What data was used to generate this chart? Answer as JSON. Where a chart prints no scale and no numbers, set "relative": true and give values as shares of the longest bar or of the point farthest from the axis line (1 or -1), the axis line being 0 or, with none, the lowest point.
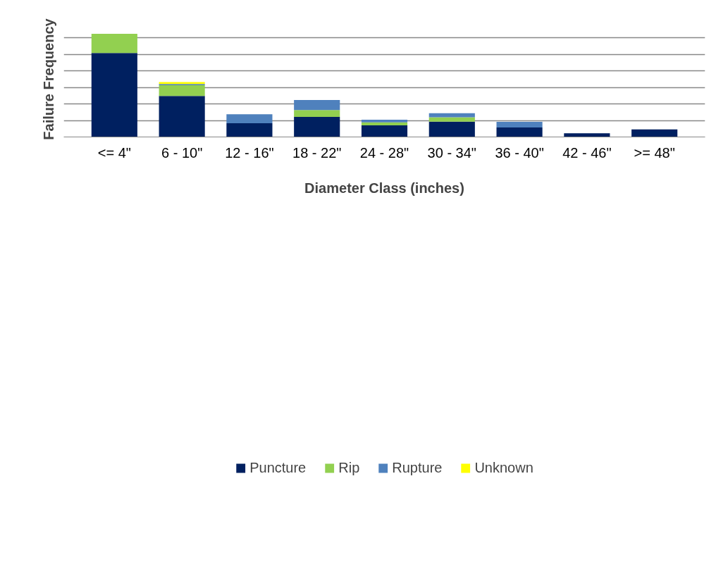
{
  "chart_data": {
    "type": "bar",
    "stacked": true,
    "relative": true,
    "xlabel": "Diameter Class (inches)",
    "ylabel": "Failure Frequency",
    "categories": [
      "<= 4\"",
      "6 - 10\"",
      "12 - 16\"",
      "18 - 22\"",
      "24 - 28\"",
      "30 - 34\"",
      "36 - 40\"",
      "42 - 46\"",
      ">= 48\""
    ],
    "series": [
      {
        "name": "Puncture",
        "color": "#002060",
        "values": [
          0.815,
          0.398,
          0.133,
          0.195,
          0.112,
          0.149,
          0.092,
          0.036,
          0.074
        ]
      },
      {
        "name": "Rip",
        "color": "#92d050",
        "values": [
          0.185,
          0.104,
          0,
          0.066,
          0.03,
          0.042,
          0,
          0,
          0
        ]
      },
      {
        "name": "Rupture",
        "color": "#4f81bd",
        "values": [
          0,
          0.012,
          0.088,
          0.098,
          0.026,
          0.04,
          0.054,
          0,
          0
        ]
      },
      {
        "name": "Unknown",
        "color": "#ffff00",
        "values": [
          0,
          0.018,
          0,
          0,
          0,
          0,
          0,
          0,
          0
        ]
      }
    ],
    "grid": "y",
    "legend": "bottom"
  }
}
